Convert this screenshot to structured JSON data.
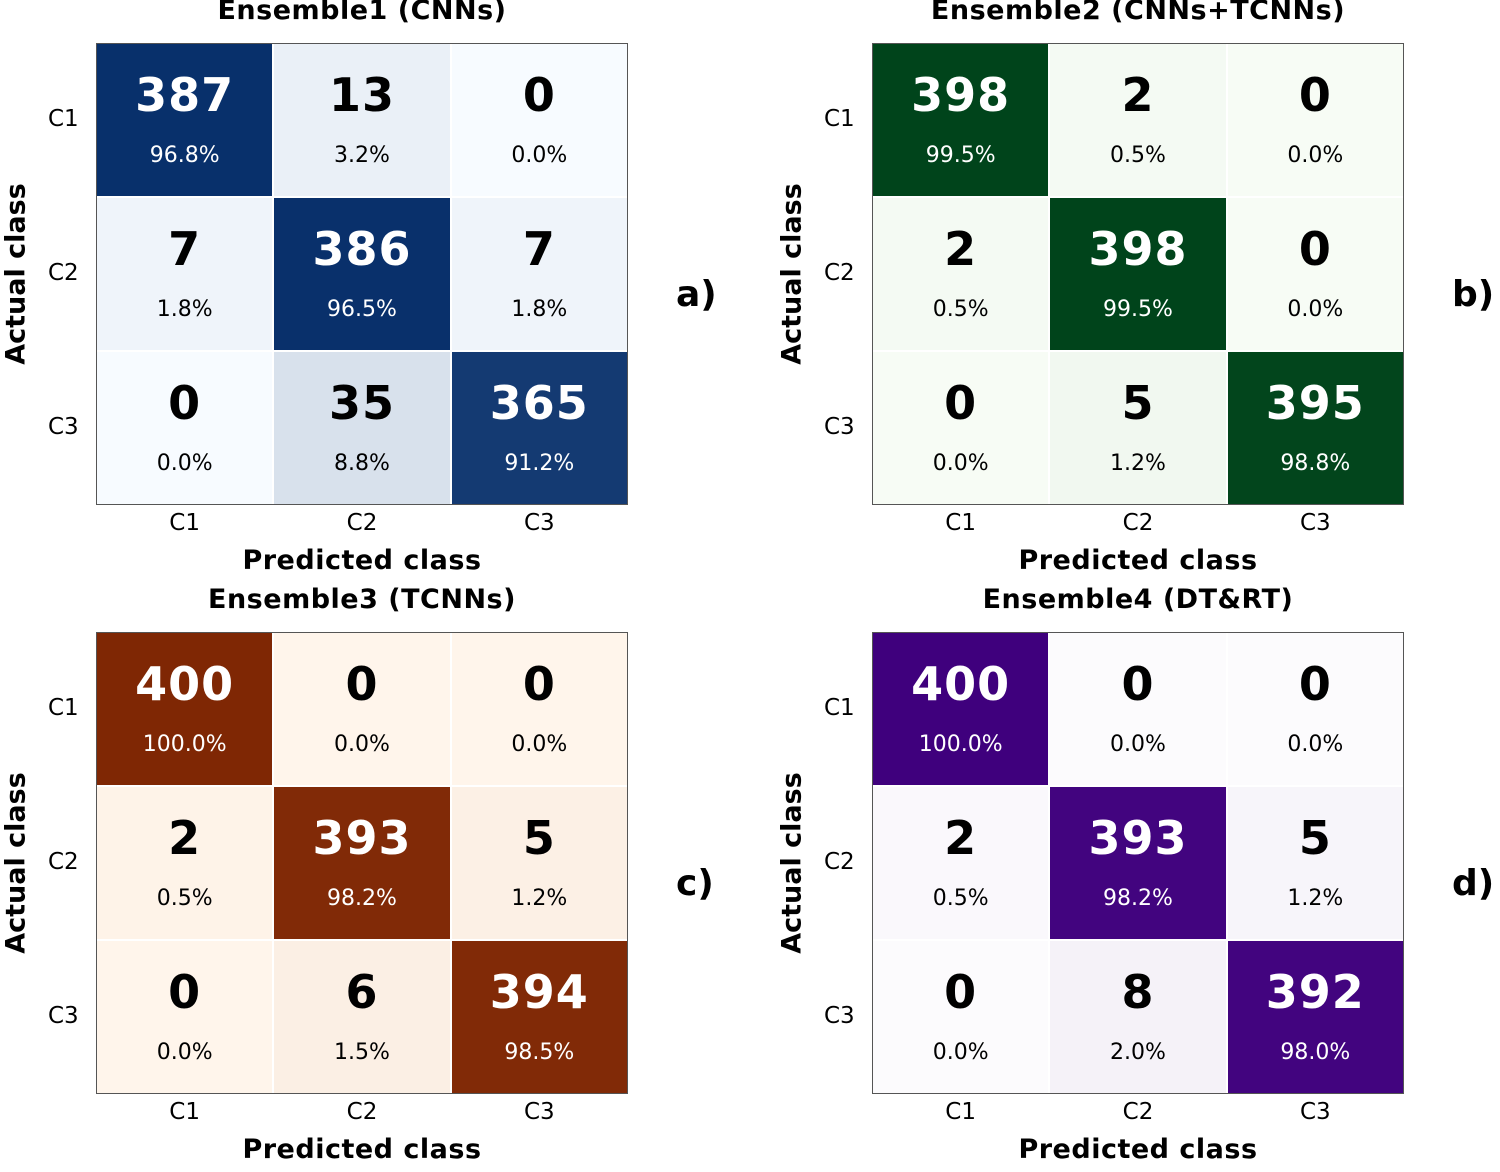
{
  "chart_data": [
    {
      "type": "heatmap",
      "panel_label": "a)",
      "title": "Ensemble1 (CNNs)",
      "xlabel": "Predicted class",
      "ylabel": "Actual class",
      "x_categories": [
        "C1",
        "C2",
        "C3"
      ],
      "y_categories": [
        "C1",
        "C2",
        "C3"
      ],
      "values": [
        [
          387,
          13,
          0
        ],
        [
          7,
          386,
          7
        ],
        [
          0,
          35,
          365
        ]
      ],
      "percentages": [
        [
          "96.8%",
          "3.2%",
          "0.0%"
        ],
        [
          "1.8%",
          "96.5%",
          "1.8%"
        ],
        [
          "0.0%",
          "8.8%",
          "91.2%"
        ]
      ],
      "colormap": {
        "low": "#f7fbff",
        "high": "#08306b"
      }
    },
    {
      "type": "heatmap",
      "panel_label": "b)",
      "title": "Ensemble2 (CNNs+TCNNs)",
      "xlabel": "Predicted class",
      "ylabel": "Actual class",
      "x_categories": [
        "C1",
        "C2",
        "C3"
      ],
      "y_categories": [
        "C1",
        "C2",
        "C3"
      ],
      "values": [
        [
          398,
          2,
          0
        ],
        [
          2,
          398,
          0
        ],
        [
          0,
          5,
          395
        ]
      ],
      "percentages": [
        [
          "99.5%",
          "0.5%",
          "0.0%"
        ],
        [
          "0.5%",
          "99.5%",
          "0.0%"
        ],
        [
          "0.0%",
          "1.2%",
          "98.8%"
        ]
      ],
      "colormap": {
        "low": "#f7fcf5",
        "high": "#00441b"
      }
    },
    {
      "type": "heatmap",
      "panel_label": "c)",
      "title": "Ensemble3 (TCNNs)",
      "xlabel": "Predicted class",
      "ylabel": "Actual class",
      "x_categories": [
        "C1",
        "C2",
        "C3"
      ],
      "y_categories": [
        "C1",
        "C2",
        "C3"
      ],
      "values": [
        [
          400,
          0,
          0
        ],
        [
          2,
          393,
          5
        ],
        [
          0,
          6,
          394
        ]
      ],
      "percentages": [
        [
          "100.0%",
          "0.0%",
          "0.0%"
        ],
        [
          "0.5%",
          "98.2%",
          "1.2%"
        ],
        [
          "0.0%",
          "1.5%",
          "98.5%"
        ]
      ],
      "colormap": {
        "low": "#fff5eb",
        "high": "#7f2704"
      }
    },
    {
      "type": "heatmap",
      "panel_label": "d)",
      "title": "Ensemble4 (DT&RT)",
      "xlabel": "Predicted class",
      "ylabel": "Actual class",
      "x_categories": [
        "C1",
        "C2",
        "C3"
      ],
      "y_categories": [
        "C1",
        "C2",
        "C3"
      ],
      "values": [
        [
          400,
          0,
          0
        ],
        [
          2,
          393,
          5
        ],
        [
          0,
          8,
          392
        ]
      ],
      "percentages": [
        [
          "100.0%",
          "0.0%",
          "0.0%"
        ],
        [
          "0.5%",
          "98.2%",
          "1.2%"
        ],
        [
          "0.0%",
          "2.0%",
          "98.0%"
        ]
      ],
      "colormap": {
        "low": "#fcfbfd",
        "high": "#3f007d"
      }
    }
  ]
}
